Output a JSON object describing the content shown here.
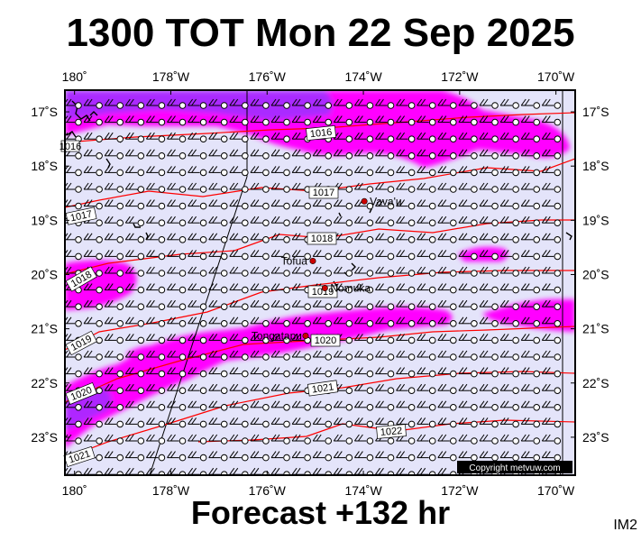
{
  "title": "1300 TOT Mon 22 Sep 2025",
  "footer": "Forecast +132 hr",
  "model_code": "IM2",
  "copyright": "Copyright metvuw.com",
  "map": {
    "lon_range": [
      -180.2,
      -169.6
    ],
    "lat_range": [
      -23.7,
      -16.6
    ],
    "lon_ticks": [
      {
        "lon": -180,
        "label": "180˚"
      },
      {
        "lon": -178,
        "label": "178˚W"
      },
      {
        "lon": -176,
        "label": "176˚W"
      },
      {
        "lon": -174,
        "label": "174˚W"
      },
      {
        "lon": -172,
        "label": "172˚W"
      },
      {
        "lon": -170,
        "label": "170˚W"
      }
    ],
    "lat_ticks": [
      {
        "lat": -17,
        "label": "17˚S"
      },
      {
        "lat": -18,
        "label": "18˚S"
      },
      {
        "lat": -19,
        "label": "19˚S"
      },
      {
        "lat": -20,
        "label": "20˚S"
      },
      {
        "lat": -21,
        "label": "21˚S"
      },
      {
        "lat": -22,
        "label": "22˚S"
      },
      {
        "lat": -23,
        "label": "23˚S"
      }
    ],
    "colors": {
      "ocean": "#e4e4fa",
      "rain_light": "#ff00ff",
      "rain_heavy": "#9b30ff",
      "isobar": "#ff0000",
      "town": "#cc0000"
    },
    "isobar_labels": [
      "1016",
      "1016",
      "1017",
      "1017",
      "1018",
      "1018",
      "1019",
      "1019",
      "1020",
      "1020",
      "1021",
      "1021",
      "1022"
    ],
    "towns": [
      {
        "name": "Vava'u",
        "lon": -173.98,
        "lat": -18.65
      },
      {
        "name": "Tofua",
        "lon": -175.05,
        "lat": -19.75
      },
      {
        "name": "Nomuka",
        "lon": -174.8,
        "lat": -20.25
      },
      {
        "name": "Tongatapu",
        "lon": -175.2,
        "lat": -21.13
      }
    ]
  }
}
